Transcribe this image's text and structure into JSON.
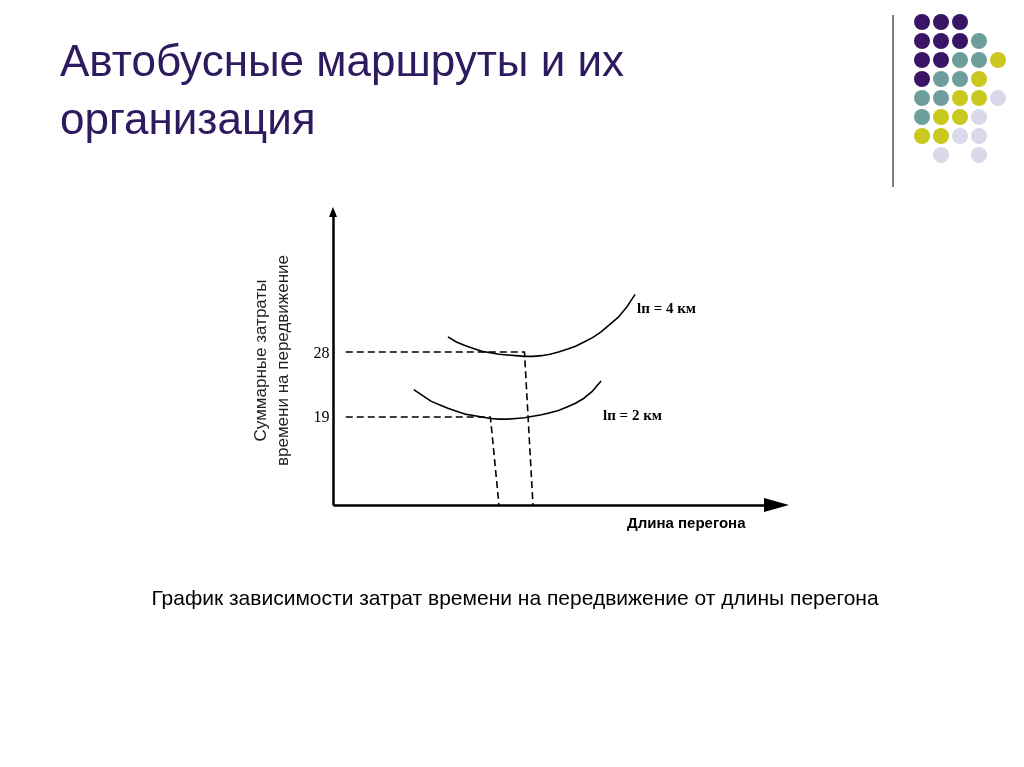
{
  "chart_data": {
    "type": "line",
    "title": "Автобусные маршруты и их организация",
    "xlabel": "Длина перегона",
    "ylabel": "Суммарные затраты времени на передвижение",
    "annotations": [
      "График зависимости затрат времени на передвижение от длины перегона"
    ],
    "categories": [
      null,
      null,
      null,
      null,
      null,
      null,
      null,
      null,
      null,
      null,
      null,
      null,
      null,
      null,
      null,
      null,
      null,
      null,
      null,
      null,
      null,
      null,
      null,
      null,
      null,
      null,
      null,
      null,
      null,
      null,
      null,
      null,
      null,
      null,
      null,
      null,
      null,
      null,
      null,
      null,
      null,
      null,
      null,
      null,
      null,
      null,
      null,
      null,
      null,
      null,
      null
    ],
    "ylim": [
      6.8,
      47
    ],
    "yticks": [
      19,
      28
    ],
    "tick_labels": "y",
    "grid": false,
    "line_style": "solid",
    "series": [
      {
        "name": "lп = 4 км",
        "color": "#000000",
        "values": [
          null,
          null,
          null,
          null,
          null,
          null,
          null,
          null,
          null,
          null,
          null,
          null,
          null,
          30.1,
          29.4,
          28.9,
          28.5,
          28.1,
          27.9,
          27.7,
          27.6,
          27.5,
          27.4,
          27.4,
          27.5,
          27.7,
          28.0,
          28.4,
          28.8,
          29.4,
          30.0,
          30.8,
          31.8,
          32.8,
          34.2,
          36.0,
          null,
          null,
          null,
          null,
          null,
          null,
          null,
          null,
          null,
          null,
          null,
          null,
          null,
          null,
          null
        ]
      },
      {
        "name": "lп = 2 км",
        "color": "#000000",
        "values": [
          null,
          null,
          null,
          null,
          null,
          null,
          null,
          null,
          null,
          22.8,
          22.0,
          21.2,
          20.7,
          20.2,
          19.8,
          19.4,
          19.2,
          19.0,
          18.8,
          18.7,
          18.7,
          18.8,
          18.9,
          19.1,
          19.3,
          19.6,
          19.9,
          20.4,
          20.9,
          21.6,
          22.6,
          24.0,
          null,
          null,
          null,
          null,
          null,
          null,
          null,
          null,
          null,
          null,
          null,
          null,
          null,
          null,
          null,
          null,
          null,
          null,
          null
        ]
      },
      {
        "color": "#000000",
        "line_style": "dashed",
        "values": [
          null,
          28,
          28,
          28,
          28,
          28,
          28,
          28,
          28,
          28,
          28,
          28,
          28,
          28,
          28,
          28,
          28,
          28,
          28,
          28,
          28,
          28,
          28,
          6.8,
          null,
          null,
          null,
          null,
          null,
          null,
          null,
          null,
          null,
          null,
          null,
          null,
          null,
          null,
          null,
          null,
          null,
          null,
          null,
          null,
          null,
          null,
          null,
          null,
          null,
          null,
          null
        ]
      },
      {
        "color": "#000000",
        "line_style": "dashed",
        "values": [
          null,
          19,
          19,
          19,
          19,
          19,
          19,
          19,
          19,
          19,
          19,
          19,
          19,
          19,
          19,
          19,
          19,
          19,
          19,
          6.8,
          null,
          null,
          null,
          null,
          null,
          null,
          null,
          null,
          null,
          null,
          null,
          null,
          null,
          null,
          null,
          null,
          null,
          null,
          null,
          null,
          null,
          null,
          null,
          null,
          null,
          null,
          null,
          null,
          null,
          null,
          null
        ]
      }
    ]
  }
}
